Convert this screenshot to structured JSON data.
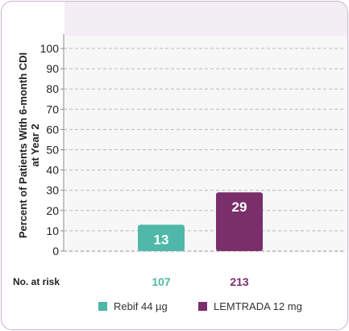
{
  "chart_data": {
    "type": "bar",
    "ylabel": "Percent of Patients With 6-month CDI at Year 2",
    "ylim": [
      0,
      100
    ],
    "yticks": [
      0,
      10,
      20,
      30,
      40,
      50,
      60,
      70,
      80,
      90,
      100
    ],
    "grid": true,
    "series": [
      {
        "name": "Rebif 44 µg",
        "value": 13,
        "color": "#4fb8a8",
        "risk": "107"
      },
      {
        "name": "LEMTRADA 12 mg",
        "value": 29,
        "color": "#7a2f6b",
        "risk": "213"
      }
    ],
    "risk_label": "No. at risk",
    "legend_position": "bottom"
  }
}
